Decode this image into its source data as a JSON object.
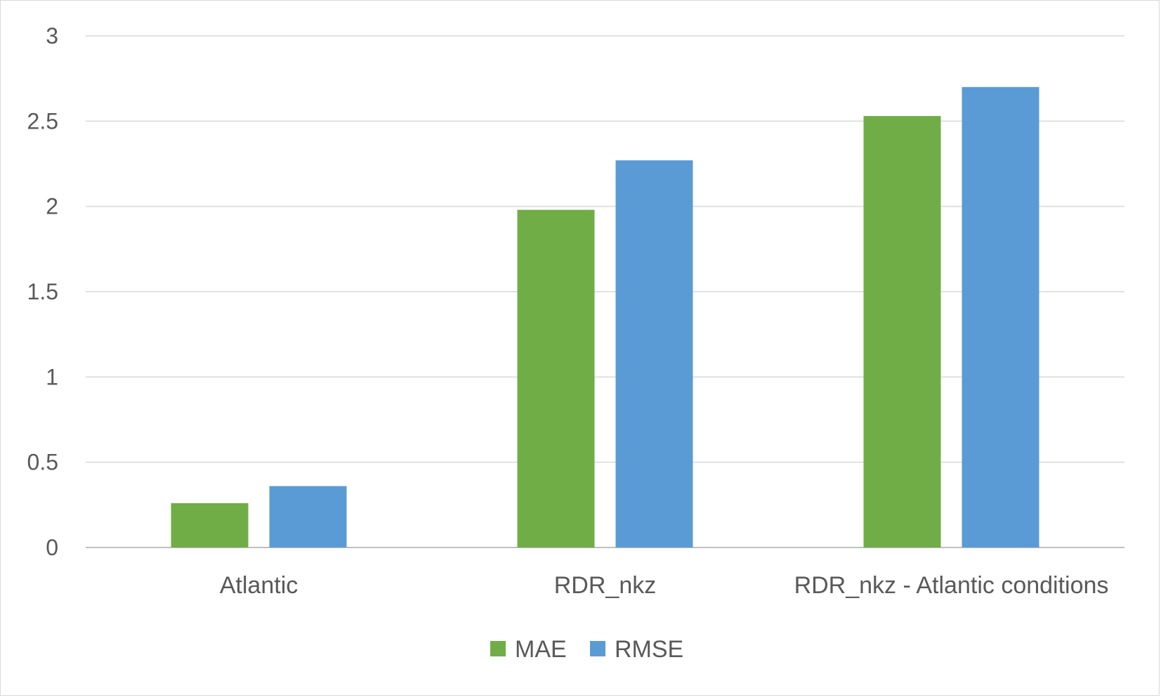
{
  "chart_data": {
    "type": "bar",
    "title": "",
    "xlabel": "",
    "ylabel": "",
    "categories": [
      "Atlantic",
      "RDR_nkz",
      "RDR_nkz - Atlantic conditions"
    ],
    "series": [
      {
        "name": "MAE",
        "color": "#70ad47",
        "values": [
          0.26,
          1.98,
          2.53
        ]
      },
      {
        "name": "RMSE",
        "color": "#5b9bd5",
        "values": [
          0.36,
          2.27,
          2.7
        ]
      }
    ],
    "ylim": [
      0,
      3
    ],
    "yticks": [
      "0",
      "0.5",
      "1",
      "1.5",
      "2",
      "2.5",
      "3"
    ],
    "grid": true,
    "legend_position": "bottom-center"
  }
}
